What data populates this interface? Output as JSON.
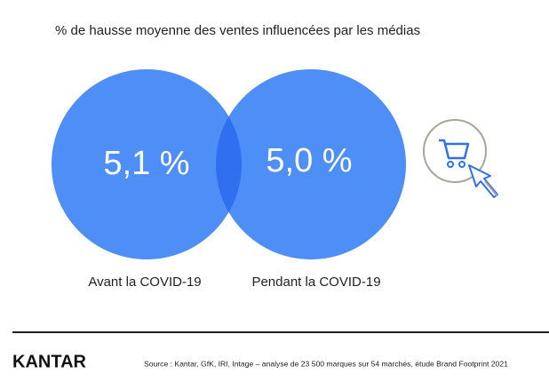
{
  "title": "% de hausse moyenne des ventes influencées par les médias",
  "circles": [
    {
      "value": "5,1 %",
      "label": "Avant la COVID-19"
    },
    {
      "value": "5,0 %",
      "label": "Pendant la COVID-19"
    }
  ],
  "footer": {
    "logo": "KANTAR",
    "source": "Source : Kantar, GfK, IRI, Intage – analyse de 23 500 marques sur 54 marchés, étude Brand Footprint 2021"
  }
}
